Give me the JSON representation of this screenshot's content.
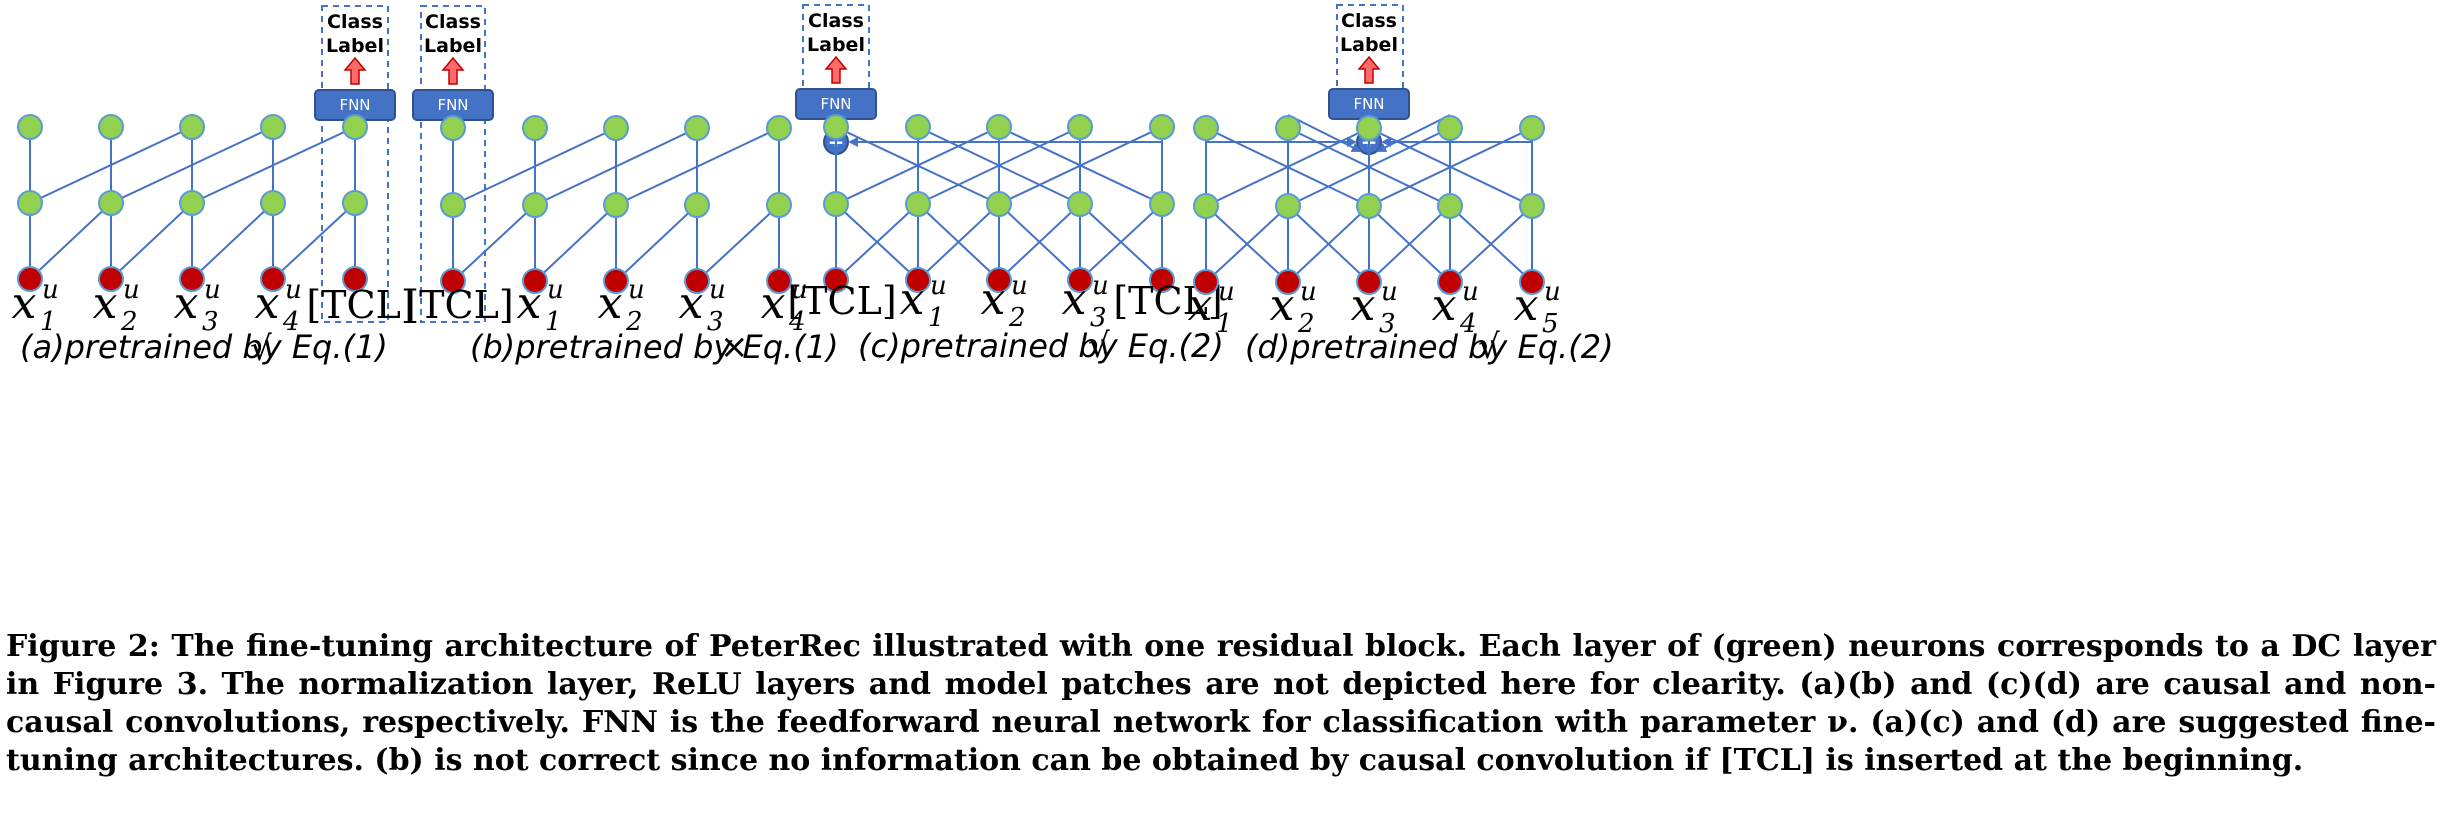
{
  "figure": {
    "panels": [
      {
        "id": "a",
        "caption": "(a)pretrained by Eq.(1)",
        "mark": "√",
        "inputs": [
          "x1",
          "x2",
          "x3",
          "x4",
          "[TCL]"
        ],
        "class_label": "Class Label",
        "fnn": "FNN"
      },
      {
        "id": "b",
        "caption": "(b)pretrained by Eq.(1)",
        "mark": "×",
        "inputs": [
          "[TCL]",
          "x1",
          "x2",
          "x3",
          "x4"
        ],
        "class_label": "Class Label",
        "fnn": "FNN"
      },
      {
        "id": "c",
        "caption": "(c)pretrained by Eq.(2)",
        "mark": "√",
        "inputs": [
          "[TCL]",
          "x1",
          "x2",
          "x3",
          "[TCL]"
        ],
        "class_label": "Class Label",
        "fnn": "FNN",
        "plus": "+"
      },
      {
        "id": "d",
        "caption": "(d)pretrained by Eq.(2)",
        "mark": "√",
        "inputs": [
          "x1",
          "x2",
          "x3",
          "x4",
          "x5"
        ],
        "class_label": "Class Label",
        "fnn": "FNN",
        "plus": "+"
      }
    ],
    "var_symbol": "x",
    "var_superscript": "u",
    "colors": {
      "edge": "#4472C4",
      "hidden_neuron": "#92D050",
      "input_neuron": "#C00000",
      "fnn": "#4472C4",
      "arrow": "#FF6B6B"
    }
  },
  "caption": {
    "label": "Figure 2:",
    "text": "The fine-tuning architecture of PeterRec illustrated with one residual block. Each layer of (green) neurons corresponds to a DC layer in Figure 3. The normalization layer, ReLU layers and model patches are not depicted here for clearity. (a)(b) and (c)(d) are causal and non-causal convolutions, respectively. FNN is the feedforward neural network for classification with parameter ν. (a)(c) and (d) are suggested fine-tuning architectures. (b) is not correct since no information can be obtained by causal convolution if [TCL] is inserted at the beginning."
  }
}
